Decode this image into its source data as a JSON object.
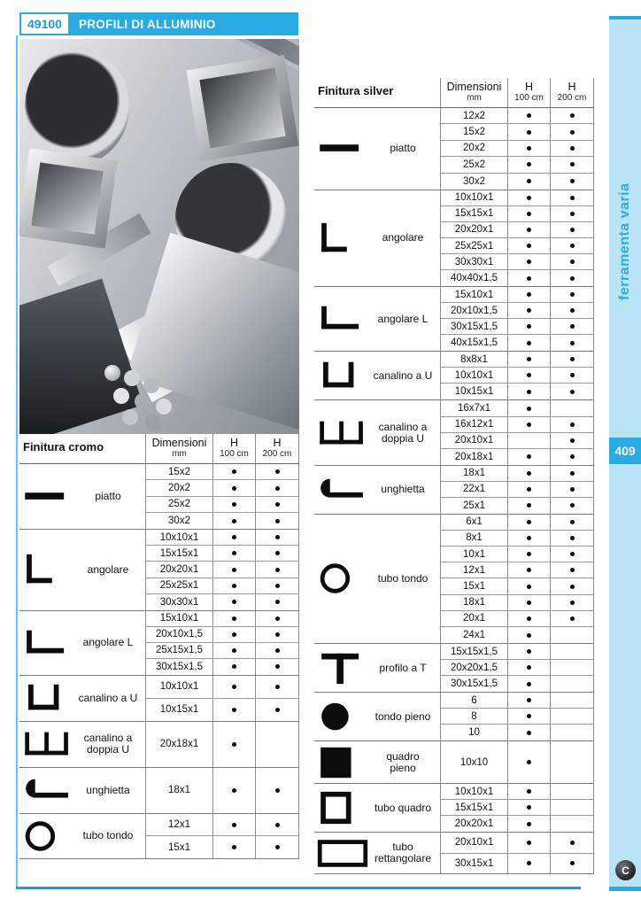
{
  "page": {
    "code": "49100",
    "title": "PROFILI DI ALLUMINIO",
    "sidebar_label": "ferramenta varia",
    "page_number": "409",
    "logo_letter": "C"
  },
  "colors": {
    "accent_blue": "#29abe2",
    "sidebar_light_blue": "#b9e4f6",
    "table_line_gray": "#8c8c8c"
  },
  "tables": {
    "col_headers": {
      "dimensioni": "Dimensioni",
      "dim_unit": "mm",
      "h": "H",
      "h100": "100 cm",
      "h200": "200 cm"
    },
    "cromo": {
      "title": "Finitura cromo",
      "groups": [
        {
          "icon": "piatto-icon",
          "label": "piatto",
          "rows": [
            [
              "15x2",
              1,
              1
            ],
            [
              "20x2",
              1,
              1
            ],
            [
              "25x2",
              1,
              1
            ],
            [
              "30x2",
              1,
              1
            ]
          ]
        },
        {
          "icon": "angolare-icon",
          "label": "angolare",
          "rows": [
            [
              "10x10x1",
              1,
              1
            ],
            [
              "15x15x1",
              1,
              1
            ],
            [
              "20x20x1",
              1,
              1
            ],
            [
              "25x25x1",
              1,
              1
            ],
            [
              "30x30x1",
              1,
              1
            ]
          ]
        },
        {
          "icon": "angolare-l-icon",
          "label": "angolare L",
          "rows": [
            [
              "15x10x1",
              1,
              1
            ],
            [
              "20x10x1,5",
              1,
              1
            ],
            [
              "25x15x1,5",
              1,
              1
            ],
            [
              "30x15x1,5",
              1,
              1
            ]
          ]
        },
        {
          "icon": "canalino-u-icon",
          "label": "canalino a U",
          "rows": [
            [
              "10x10x1",
              1,
              1
            ],
            [
              "10x15x1",
              1,
              1
            ]
          ]
        },
        {
          "icon": "canalino-doppia-u-icon",
          "label": "canalino a\ndoppia U",
          "rows": [
            [
              "20x18x1",
              1,
              0
            ]
          ]
        },
        {
          "icon": "unghietta-icon",
          "label": "unghietta",
          "rows": [
            [
              "18x1",
              1,
              1
            ]
          ]
        },
        {
          "icon": "tubo-tondo-icon",
          "label": "tubo tondo",
          "rows": [
            [
              "12x1",
              1,
              1
            ],
            [
              "15x1",
              1,
              1
            ]
          ]
        }
      ]
    },
    "silver": {
      "title": "Finitura silver",
      "groups": [
        {
          "icon": "piatto-icon",
          "label": "piatto",
          "rows": [
            [
              "12x2",
              1,
              1
            ],
            [
              "15x2",
              1,
              1
            ],
            [
              "20x2",
              1,
              1
            ],
            [
              "25x2",
              1,
              1
            ],
            [
              "30x2",
              1,
              1
            ]
          ]
        },
        {
          "icon": "angolare-icon",
          "label": "angolare",
          "rows": [
            [
              "10x10x1",
              1,
              1
            ],
            [
              "15x15x1",
              1,
              1
            ],
            [
              "20x20x1",
              1,
              1
            ],
            [
              "25x25x1",
              1,
              1
            ],
            [
              "30x30x1",
              1,
              1
            ],
            [
              "40x40x1,5",
              1,
              1
            ]
          ]
        },
        {
          "icon": "angolare-l-icon",
          "label": "angolare L",
          "rows": [
            [
              "15x10x1",
              1,
              1
            ],
            [
              "20x10x1,5",
              1,
              1
            ],
            [
              "30x15x1,5",
              1,
              1
            ],
            [
              "40x15x1,5",
              1,
              1
            ]
          ]
        },
        {
          "icon": "canalino-u-icon",
          "label": "canalino a U",
          "rows": [
            [
              "8x8x1",
              1,
              1
            ],
            [
              "10x10x1",
              1,
              1
            ],
            [
              "10x15x1",
              1,
              1
            ]
          ]
        },
        {
          "icon": "canalino-doppia-u-icon",
          "label": "canalino a\ndoppia U",
          "rows": [
            [
              "16x7x1",
              1,
              0
            ],
            [
              "16x12x1",
              1,
              1
            ],
            [
              "20x10x1",
              0,
              1
            ],
            [
              "20x18x1",
              1,
              1
            ]
          ]
        },
        {
          "icon": "unghietta-icon",
          "label": "unghietta",
          "rows": [
            [
              "18x1",
              1,
              1
            ],
            [
              "22x1",
              1,
              1
            ],
            [
              "25x1",
              1,
              1
            ]
          ]
        },
        {
          "icon": "tubo-tondo-icon",
          "label": "tubo tondo",
          "rows": [
            [
              "6x1",
              1,
              1
            ],
            [
              "8x1",
              1,
              1
            ],
            [
              "10x1",
              1,
              1
            ],
            [
              "12x1",
              1,
              1
            ],
            [
              "15x1",
              1,
              1
            ],
            [
              "18x1",
              1,
              1
            ],
            [
              "20x1",
              1,
              1
            ],
            [
              "24x1",
              1,
              0
            ]
          ]
        },
        {
          "icon": "profilo-t-icon",
          "label": "profilo a T",
          "rows": [
            [
              "15x15x1,5",
              1,
              0
            ],
            [
              "20x20x1,5",
              1,
              0
            ],
            [
              "30x15x1,5",
              1,
              0
            ]
          ]
        },
        {
          "icon": "tondo-pieno-icon",
          "label": "tondo pieno",
          "rows": [
            [
              "6",
              1,
              0
            ],
            [
              "8",
              1,
              0
            ],
            [
              "10",
              1,
              0
            ]
          ]
        },
        {
          "icon": "quadro-pieno-icon",
          "label": "quadro\npieno",
          "rows": [
            [
              "10x10",
              1,
              0
            ]
          ]
        },
        {
          "icon": "tubo-quadro-icon",
          "label": "tubo quadro",
          "rows": [
            [
              "10x10x1",
              1,
              0
            ],
            [
              "15x15x1",
              1,
              0
            ],
            [
              "20x20x1",
              1,
              0
            ]
          ]
        },
        {
          "icon": "tubo-rettangolare-icon",
          "label": "tubo\nrettangolare",
          "rows": [
            [
              "20x10x1",
              1,
              1
            ],
            [
              "30x15x1",
              1,
              1
            ]
          ]
        }
      ]
    }
  }
}
